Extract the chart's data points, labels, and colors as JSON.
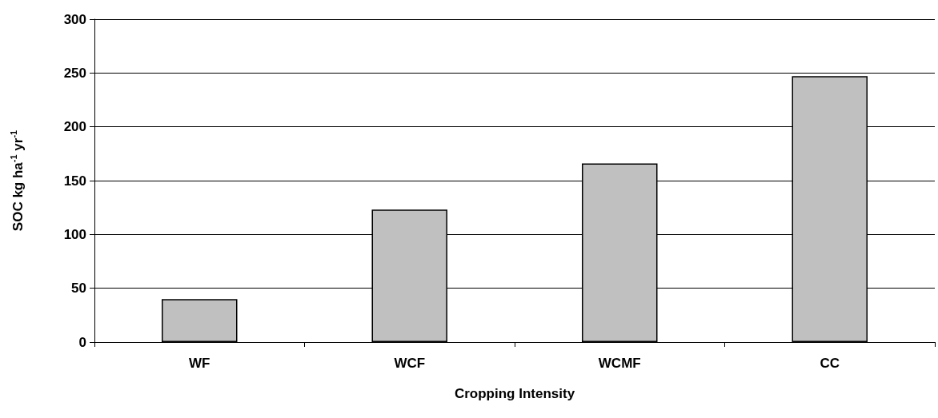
{
  "chart_data": {
    "type": "bar",
    "xlabel": "Cropping Intensity",
    "ylabel": "SOC kg ha$^{-1}$ yr$^{-1}$",
    "categories": [
      "WF",
      "WCF",
      "WCMF",
      "CC"
    ],
    "values": [
      40,
      123,
      166,
      247
    ],
    "color": "#c0c0c0",
    "ylim": [
      0,
      300
    ],
    "yticks": [
      0,
      50,
      100,
      150,
      200,
      250,
      300
    ],
    "grid": "y"
  }
}
